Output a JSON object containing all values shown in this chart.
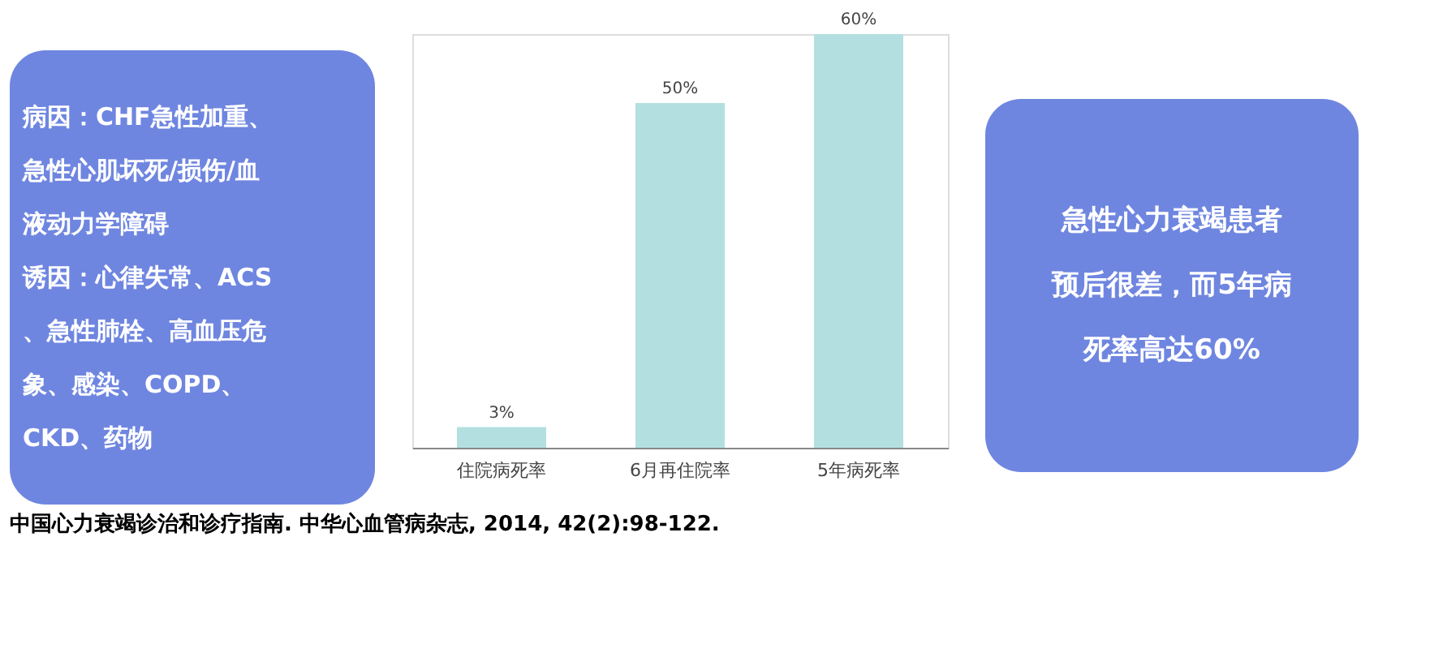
{
  "chart_data": {
    "type": "bar",
    "categories": [
      "住院病死率",
      "6月再住院率",
      "5年病死率"
    ],
    "values": [
      3,
      50,
      60
    ],
    "value_labels": [
      "3%",
      "50%",
      "60%"
    ],
    "color": "#b4dfe0",
    "grid": false,
    "annotations": [
      "病因：CHF急性加重、急性心肌坏死/损伤/血液动力学障碍",
      "诱因：心律失常、ACS、急性肺栓、高血压危象、感染、COPD、CKD、药物",
      "急性心力衰竭患者预后很差，而5年病死率高达60%",
      "中国心力衰竭诊治和诊疗指南. 中华心血管病杂志, 2014, 42(2):98-122."
    ]
  }
}
